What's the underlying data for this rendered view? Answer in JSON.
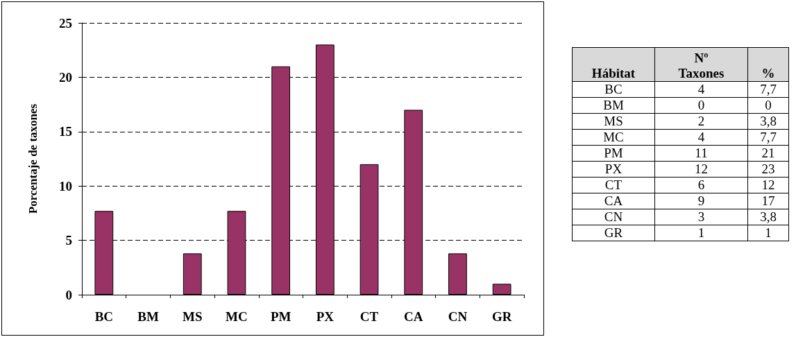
{
  "chart_data": [
    {
      "type": "bar",
      "ylabel": "Porcentaje de taxones",
      "categories": [
        "BC",
        "BM",
        "MS",
        "MC",
        "PM",
        "PX",
        "CT",
        "CA",
        "CN",
        "GR"
      ],
      "values": [
        7.7,
        0,
        3.8,
        7.7,
        21,
        23,
        12,
        17,
        3.8,
        1
      ],
      "color": "#993366",
      "ylim": [
        0,
        25
      ],
      "yticks": [
        0,
        5,
        10,
        15,
        20,
        25
      ],
      "grid": "y"
    },
    {
      "type": "other",
      "xlabel": "Hábitat",
      "data_labels": true,
      "categories": [
        "BC",
        "BM",
        "MS",
        "MC",
        "PM",
        "PX",
        "CT",
        "CA",
        "CN",
        "GR"
      ],
      "series": [
        {
          "name": "Nº Taxones",
          "values": [
            4,
            0,
            2,
            4,
            11,
            12,
            6,
            9,
            3,
            1
          ]
        },
        {
          "name": "%",
          "values": [
            7.7,
            0,
            3.8,
            7.7,
            21,
            23,
            12,
            17,
            3.8,
            1
          ],
          "value_labels": [
            "7,7",
            "0",
            "3,8",
            "7,7",
            "21",
            "23",
            "12",
            "17",
            "3,8",
            "1"
          ]
        }
      ]
    }
  ]
}
